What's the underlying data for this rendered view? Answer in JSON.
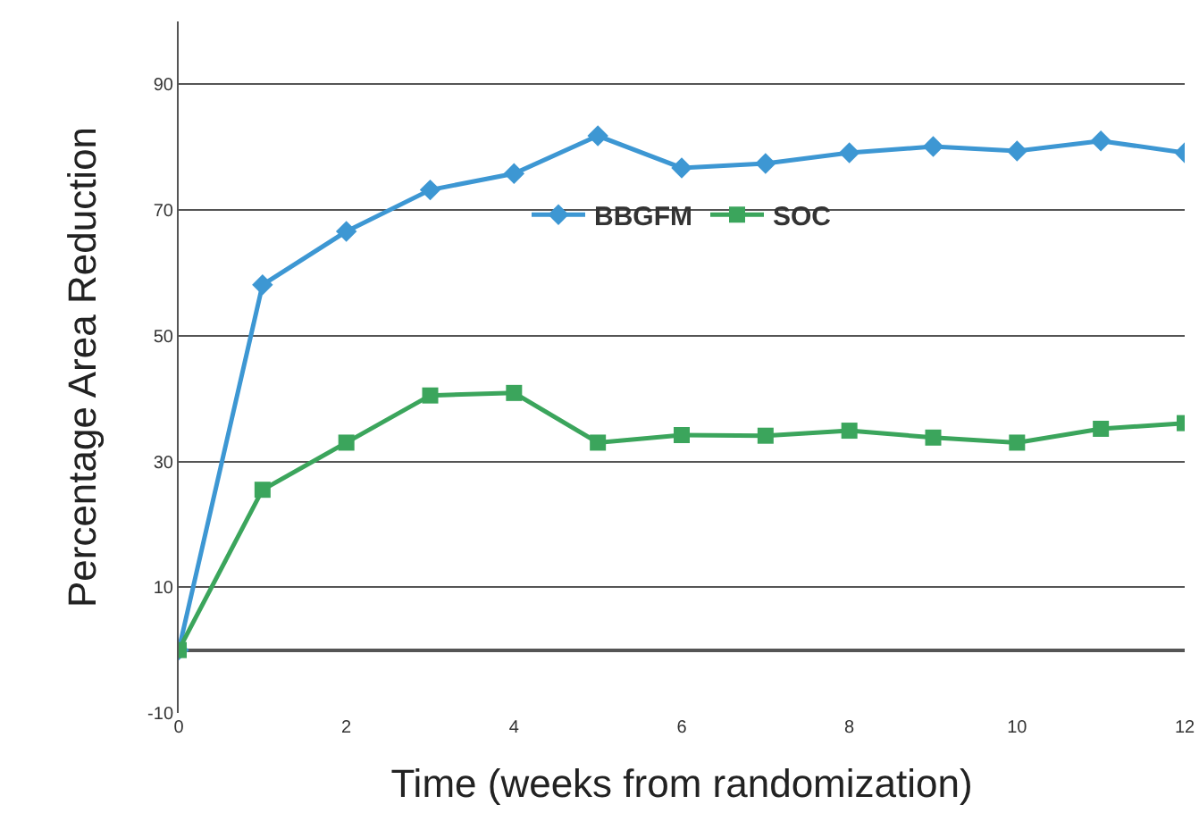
{
  "chart_data": {
    "type": "line",
    "xlabel": "Time (weeks from randomization)",
    "ylabel": "Percentage Area Reduction",
    "x": [
      0,
      1,
      2,
      3,
      4,
      5,
      6,
      7,
      8,
      9,
      10,
      11,
      12
    ],
    "series": [
      {
        "name": "BBGFM",
        "color": "#3d97d3",
        "marker": "diamond",
        "values": [
          0,
          58.1,
          66.6,
          73.2,
          75.8,
          81.8,
          76.7,
          77.4,
          79.1,
          80.1,
          79.4,
          81.0,
          79.1
        ]
      },
      {
        "name": "SOC",
        "color": "#3ba55c",
        "marker": "square",
        "values": [
          0,
          25.5,
          33.0,
          40.5,
          40.9,
          33.0,
          34.2,
          34.1,
          34.9,
          33.8,
          33.0,
          35.2,
          36.1
        ]
      }
    ],
    "xlim": [
      0,
      12
    ],
    "xticks": [
      0,
      2,
      4,
      6,
      8,
      10,
      12
    ],
    "ylim": [
      -10,
      100
    ],
    "yticks": [
      -10,
      10,
      30,
      50,
      70,
      90
    ],
    "grid": "y",
    "legend": "center",
    "line_style": "solid"
  }
}
